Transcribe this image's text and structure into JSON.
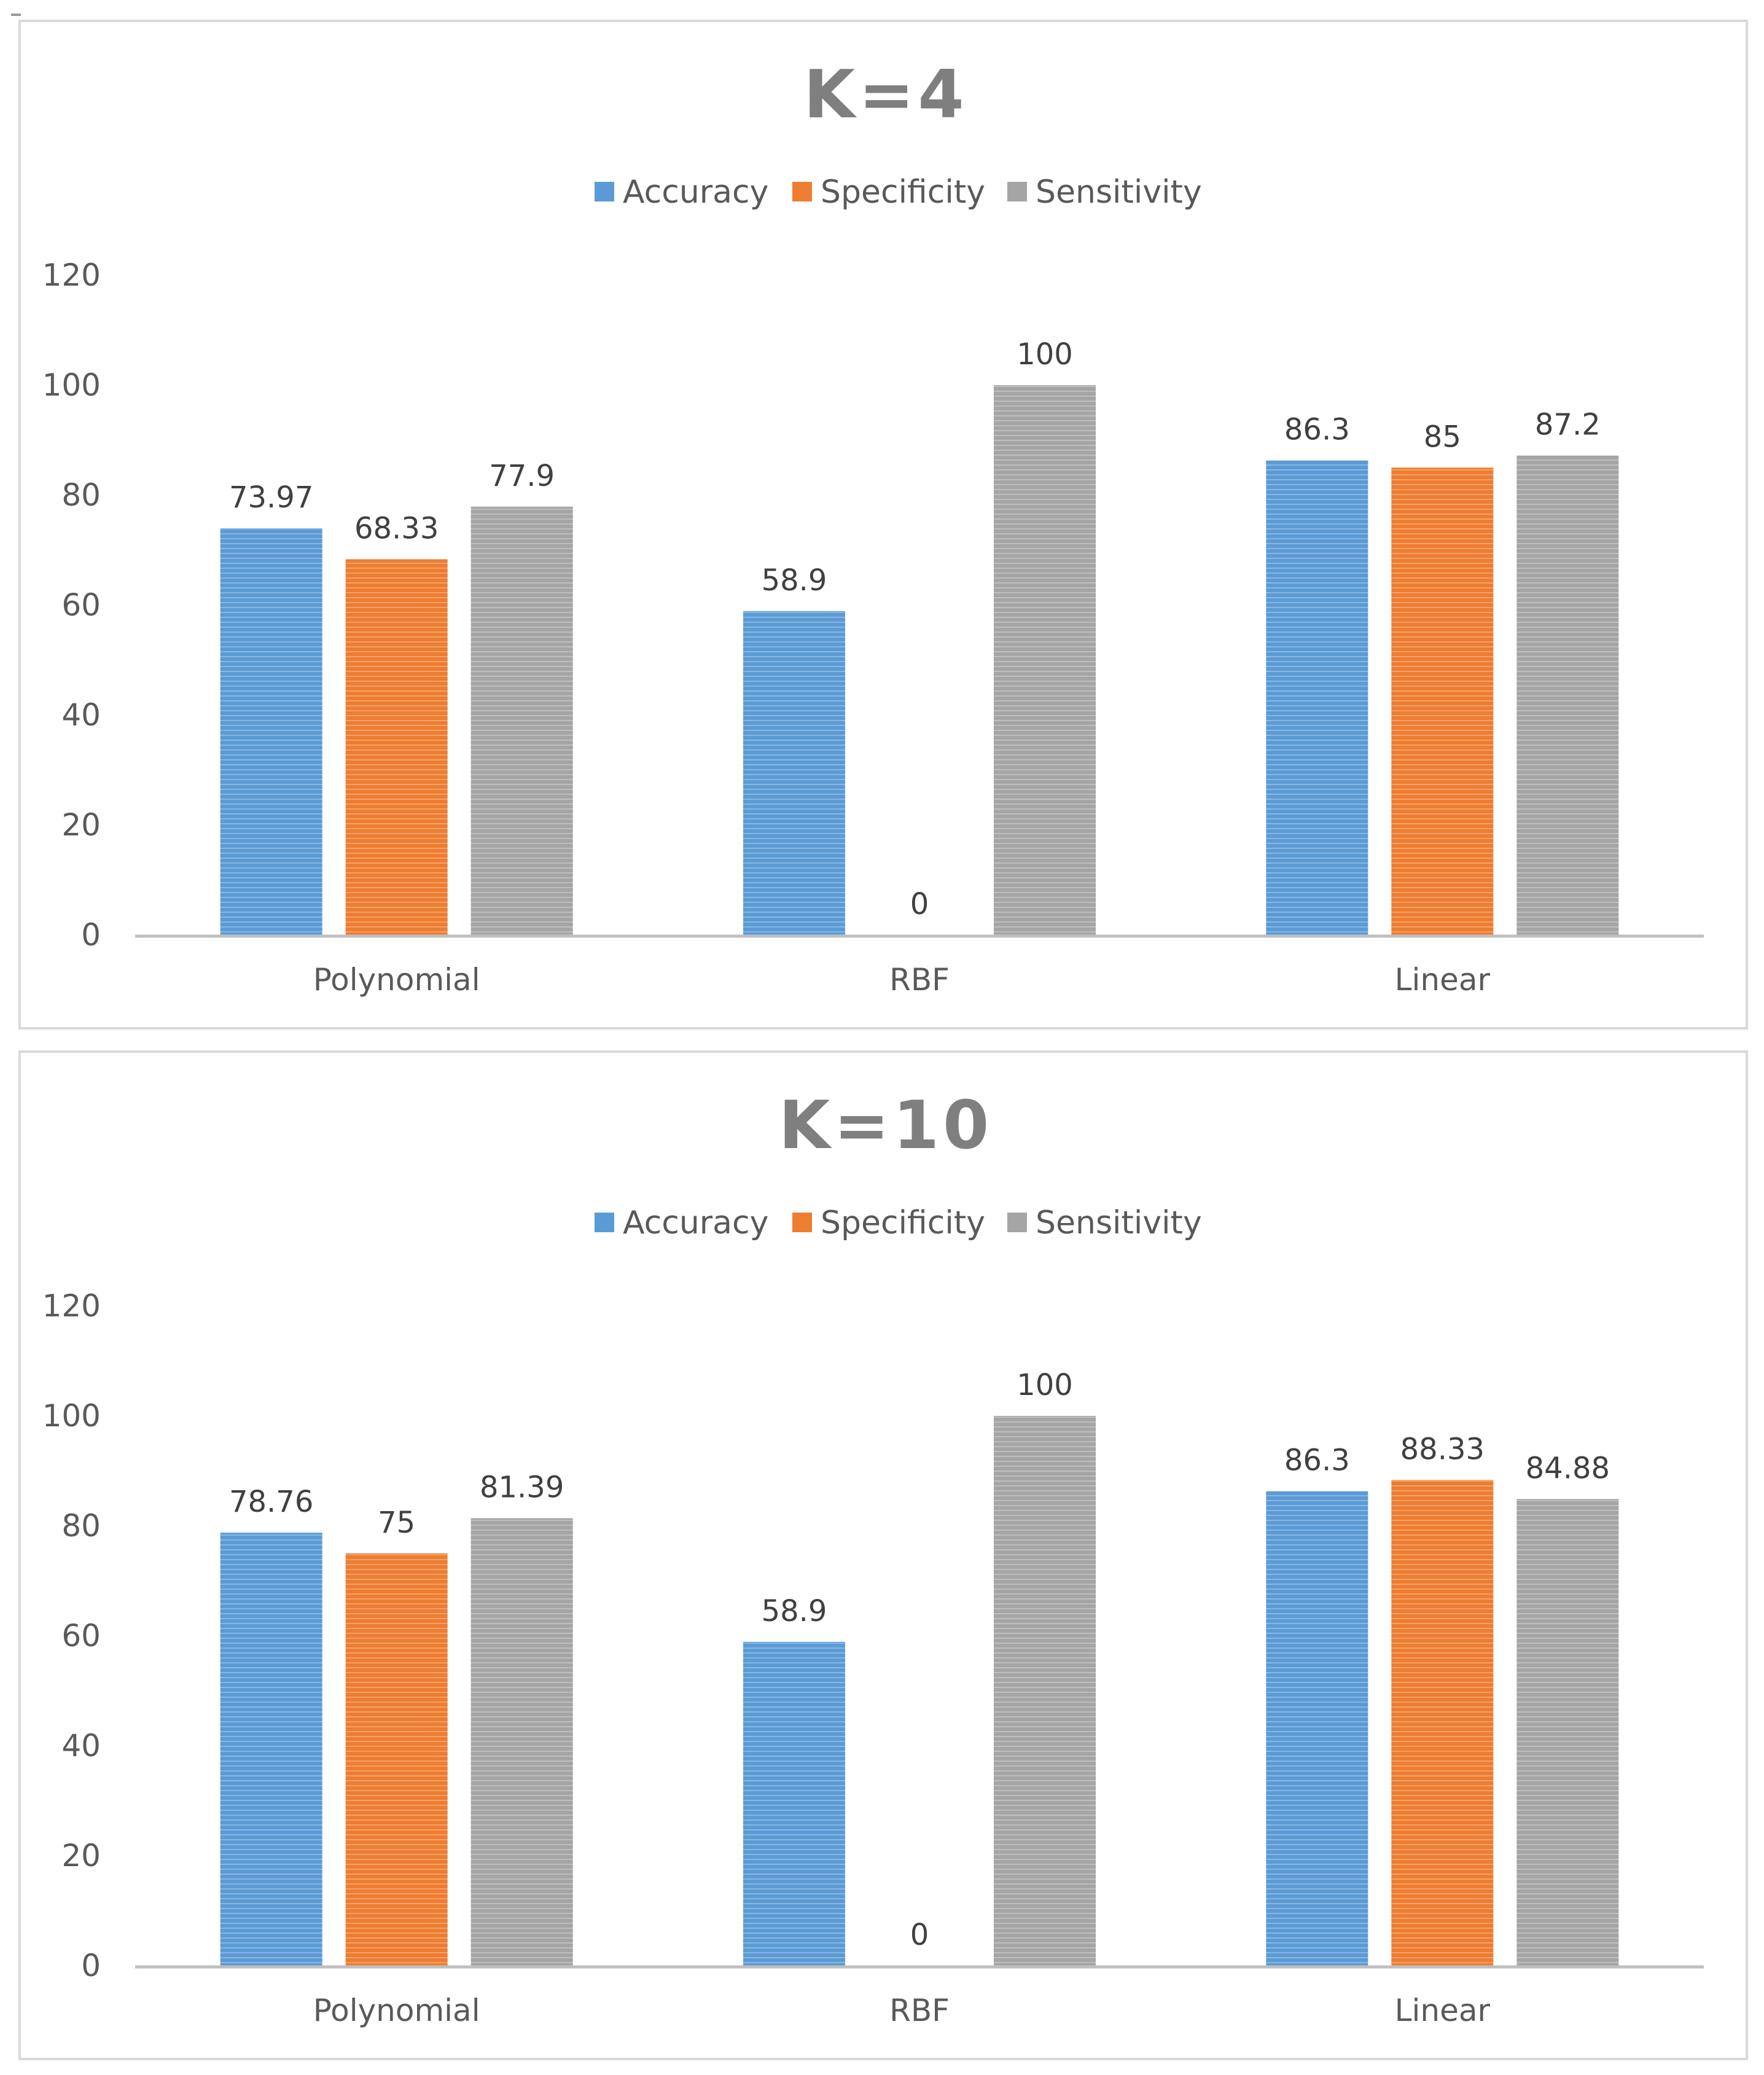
{
  "colors": {
    "Accuracy": "#5b9bd5",
    "Specificity": "#ed7d31",
    "Sensitivity": "#a5a5a5",
    "axis": "#d9d9d9",
    "text": "#595959"
  },
  "chart_data": [
    {
      "type": "bar",
      "title": "K=4",
      "categories": [
        "Polynomial",
        "RBF",
        "Linear"
      ],
      "series": [
        {
          "name": "Accuracy",
          "values": [
            73.97,
            58.9,
            86.3
          ],
          "labels": [
            "73.97",
            "58.9",
            "86.3"
          ]
        },
        {
          "name": "Specificity",
          "values": [
            68.33,
            0,
            85
          ],
          "labels": [
            "68.33",
            "0",
            "85"
          ]
        },
        {
          "name": "Sensitivity",
          "values": [
            77.9,
            100,
            87.2
          ],
          "labels": [
            "77.9",
            "100",
            "87.2"
          ]
        }
      ],
      "yticks": [
        "0",
        "20",
        "40",
        "60",
        "80",
        "100",
        "120"
      ],
      "ylim": [
        0,
        120
      ],
      "legend": "top-center",
      "xlabel": "",
      "ylabel": ""
    },
    {
      "type": "bar",
      "title": "K=10",
      "categories": [
        "Polynomial",
        "RBF",
        "Linear"
      ],
      "series": [
        {
          "name": "Accuracy",
          "values": [
            78.76,
            58.9,
            86.3
          ],
          "labels": [
            "78.76",
            "58.9",
            "86.3"
          ]
        },
        {
          "name": "Specificity",
          "values": [
            75,
            0,
            88.33
          ],
          "labels": [
            "75",
            "0",
            "88.33"
          ]
        },
        {
          "name": "Sensitivity",
          "values": [
            81.39,
            100,
            84.88
          ],
          "labels": [
            "81.39",
            "100",
            "84.88"
          ]
        }
      ],
      "yticks": [
        "0",
        "20",
        "40",
        "60",
        "80",
        "100",
        "120"
      ],
      "ylim": [
        0,
        120
      ],
      "legend": "top-center",
      "xlabel": "",
      "ylabel": ""
    }
  ]
}
